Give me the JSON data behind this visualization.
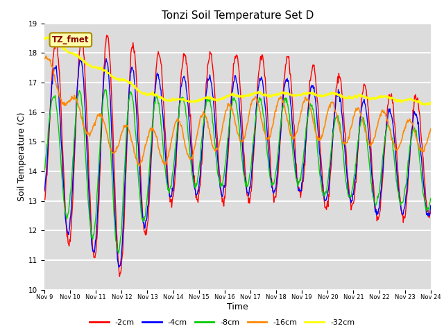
{
  "title": "Tonzi Soil Temperature Set D",
  "xlabel": "Time",
  "ylabel": "Soil Temperature (C)",
  "ylim": [
    10.0,
    19.0
  ],
  "yticks": [
    10.0,
    11.0,
    12.0,
    13.0,
    14.0,
    15.0,
    16.0,
    17.0,
    18.0,
    19.0
  ],
  "x_labels": [
    "Nov 9",
    "Nov 10",
    "Nov 11",
    "Nov 12",
    "Nov 13",
    "Nov 14",
    "Nov 15",
    "Nov 16",
    "Nov 17",
    "Nov 18",
    "Nov 19",
    "Nov 20",
    "Nov 21",
    "Nov 22",
    "Nov 23",
    "Nov 24"
  ],
  "legend_label": "TZ_fmet",
  "series_colors": [
    "#ff0000",
    "#0000ff",
    "#00cc00",
    "#ff8800",
    "#ffff00"
  ],
  "series_labels": [
    "-2cm",
    "-4cm",
    "-8cm",
    "-16cm",
    "-32cm"
  ],
  "background_color": "#dcdcdc",
  "grid_color": "#ffffff",
  "n_points": 720,
  "legend_box_color": "#ffffaa",
  "legend_box_edge": "#aa8800",
  "legend_text_color": "#8b0000"
}
